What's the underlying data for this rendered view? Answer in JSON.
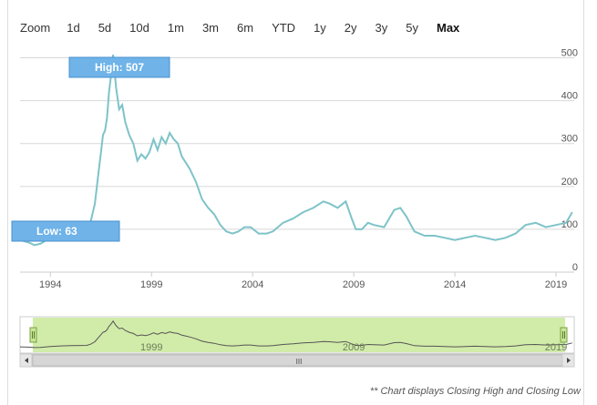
{
  "zoom": {
    "label": "Zoom",
    "options": [
      "1d",
      "5d",
      "10d",
      "1m",
      "3m",
      "6m",
      "YTD",
      "1y",
      "2y",
      "3y",
      "5y",
      "Max"
    ],
    "selected": "Max"
  },
  "footnote": "** Chart displays Closing High and Closing Low",
  "navigator": {
    "scrollbar_grip": "III",
    "labels": [
      "1999",
      "2009",
      "2019"
    ]
  },
  "colors": {
    "line": "#7ec3c8",
    "flag": "#6fb3e8",
    "navigator_fill": "#cce9a0",
    "navigator_line": "#555555",
    "axis_text": "#555555"
  },
  "chart_data": {
    "type": "line",
    "title": "",
    "xlabel": "",
    "ylabel": "",
    "x_ticks": [
      "1994",
      "1999",
      "2004",
      "2009",
      "2014",
      "2019"
    ],
    "y_ticks": [
      0,
      100,
      200,
      300,
      400,
      500
    ],
    "ylim": [
      0,
      550
    ],
    "xlim": [
      1992.5,
      2019.9
    ],
    "grid": "horizontal",
    "flags": [
      {
        "label": "High: 507",
        "x": 1997.1,
        "y": 507
      },
      {
        "label": "Low: 63",
        "x": 1993.2,
        "y": 63
      }
    ],
    "series": [
      {
        "x": [
          1992.5,
          1993.0,
          1993.2,
          1993.5,
          1994.0,
          1994.5,
          1995.0,
          1995.5,
          1995.8,
          1996.0,
          1996.2,
          1996.4,
          1996.5,
          1996.6,
          1996.7,
          1996.8,
          1996.9,
          1997.0,
          1997.1,
          1997.25,
          1997.4,
          1997.55,
          1997.7,
          1997.9,
          1998.1,
          1998.3,
          1998.5,
          1998.7,
          1998.9,
          1999.1,
          1999.3,
          1999.5,
          1999.7,
          1999.9,
          2000.1,
          2000.3,
          2000.5,
          2000.7,
          2000.9,
          2001.2,
          2001.5,
          2001.8,
          2002.1,
          2002.4,
          2002.7,
          2003.0,
          2003.3,
          2003.6,
          2003.9,
          2004.3,
          2004.7,
          2005.0,
          2005.5,
          2006.0,
          2006.5,
          2007.0,
          2007.5,
          2007.8,
          2008.2,
          2008.6,
          2008.9,
          2009.1,
          2009.4,
          2009.7,
          2010.0,
          2010.5,
          2011.0,
          2011.3,
          2011.6,
          2012.0,
          2012.5,
          2013.0,
          2013.5,
          2014.0,
          2014.5,
          2015.0,
          2015.5,
          2016.0,
          2016.5,
          2017.0,
          2017.5,
          2018.0,
          2018.5,
          2019.0,
          2019.5,
          2019.8
        ],
        "values": [
          75,
          68,
          63,
          66,
          80,
          90,
          95,
          98,
          100,
          120,
          160,
          240,
          280,
          320,
          330,
          360,
          420,
          460,
          507,
          430,
          380,
          390,
          350,
          320,
          300,
          260,
          275,
          265,
          280,
          310,
          285,
          315,
          300,
          325,
          310,
          300,
          270,
          255,
          240,
          210,
          170,
          150,
          135,
          110,
          95,
          90,
          95,
          105,
          105,
          90,
          90,
          95,
          115,
          125,
          140,
          150,
          165,
          160,
          150,
          165,
          125,
          100,
          100,
          115,
          110,
          105,
          145,
          150,
          130,
          95,
          85,
          85,
          80,
          75,
          80,
          85,
          80,
          75,
          80,
          90,
          110,
          115,
          105,
          110,
          115,
          140
        ]
      }
    ]
  }
}
